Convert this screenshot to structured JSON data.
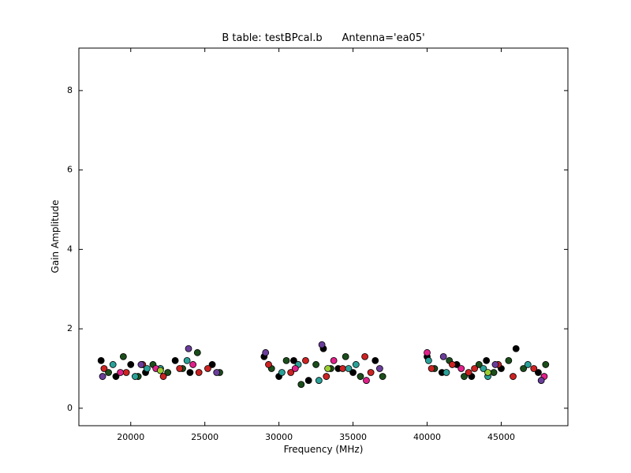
{
  "chart_data": {
    "type": "scatter",
    "title": "B table: testBPcal.b      Antenna='ea05'",
    "xlabel": "Frequency (MHz)",
    "ylabel": "Gain Amplitude",
    "xlim": [
      16500,
      49500
    ],
    "ylim": [
      -0.44,
      9.07
    ],
    "xticks": [
      20000,
      25000,
      30000,
      35000,
      40000,
      45000
    ],
    "yticks": [
      0,
      2,
      4,
      6,
      8
    ],
    "grid": false,
    "series": [
      {
        "color": "#000000",
        "x": [
          18000,
          19000,
          20000,
          21000,
          22000,
          23000,
          24000,
          25500,
          29000,
          30000,
          31000,
          32000,
          33000,
          34000,
          35000,
          36500,
          40000,
          41000,
          42000,
          43000,
          44000,
          45000,
          46000,
          47500
        ],
        "values": [
          1.2,
          0.8,
          1.1,
          0.9,
          1.0,
          1.2,
          0.9,
          1.1,
          1.3,
          0.8,
          1.2,
          0.7,
          1.5,
          1.0,
          0.9,
          1.2,
          1.3,
          0.9,
          1.1,
          0.8,
          1.2,
          1.0,
          1.5,
          0.9
        ]
      },
      {
        "color": "#1b4d1b",
        "x": [
          18500,
          19500,
          20500,
          21500,
          22500,
          23500,
          24500,
          26000,
          29500,
          30500,
          31500,
          32500,
          33500,
          34500,
          35500,
          37000,
          40500,
          41500,
          42500,
          43500,
          44500,
          45500,
          46500,
          48000
        ],
        "values": [
          0.9,
          1.3,
          0.8,
          1.1,
          0.9,
          1.0,
          1.4,
          0.9,
          1.0,
          1.2,
          0.6,
          1.1,
          1.0,
          1.3,
          0.8,
          0.8,
          1.0,
          1.2,
          0.8,
          1.1,
          0.9,
          1.2,
          1.0,
          1.1
        ]
      },
      {
        "color": "#cc2222",
        "x": [
          18200,
          19700,
          20800,
          22200,
          23300,
          24600,
          25200,
          29300,
          30800,
          31800,
          33200,
          34300,
          35800,
          36200,
          40300,
          41700,
          42800,
          43200,
          44800,
          45800,
          47200
        ],
        "values": [
          1.0,
          0.9,
          1.1,
          0.8,
          1.0,
          0.9,
          1.0,
          1.1,
          0.9,
          1.2,
          0.8,
          1.0,
          1.3,
          0.9,
          1.0,
          1.1,
          0.9,
          1.0,
          1.1,
          0.8,
          1.0
        ]
      },
      {
        "color": "#2aa198",
        "x": [
          18800,
          20300,
          21100,
          22000,
          23800,
          30200,
          31300,
          32700,
          34700,
          35200,
          40100,
          41300,
          43800,
          44100,
          46800
        ],
        "values": [
          1.1,
          0.8,
          1.0,
          1.0,
          1.2,
          0.9,
          1.1,
          0.7,
          1.0,
          1.1,
          1.2,
          0.9,
          1.0,
          0.8,
          1.1
        ]
      },
      {
        "color": "#e0208a",
        "x": [
          19300,
          21700,
          24200,
          31100,
          33700,
          35900,
          40000,
          42300,
          47900
        ],
        "values": [
          0.9,
          1.0,
          1.1,
          1.0,
          1.2,
          0.7,
          1.4,
          1.0,
          0.8
        ]
      },
      {
        "color": "#6a3d9a",
        "x": [
          18100,
          20700,
          23900,
          25800,
          29100,
          32900,
          36800,
          41100,
          44600,
          47700
        ],
        "values": [
          0.8,
          1.1,
          1.5,
          0.9,
          1.4,
          1.6,
          1.0,
          1.3,
          1.1,
          0.7
        ]
      },
      {
        "color": "#9acd32",
        "x": [
          22000,
          33300,
          44100
        ],
        "values": [
          0.95,
          1.0,
          0.9
        ]
      }
    ]
  }
}
